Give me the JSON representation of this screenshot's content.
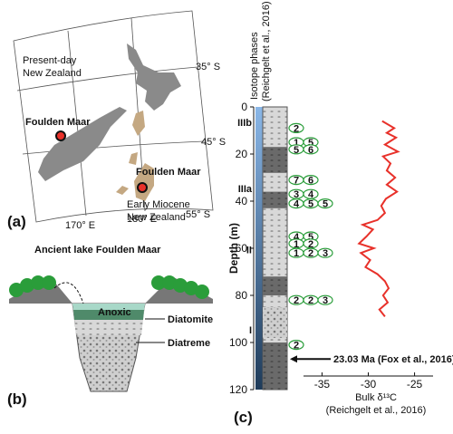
{
  "panel_a": {
    "label": "(a)",
    "lat_labels": [
      "35° S",
      "45° S",
      "55° S"
    ],
    "lon_labels": [
      "170° E",
      "180° E"
    ],
    "present_label": [
      "Present-day",
      "New Zealand"
    ],
    "site_labels": [
      "Foulden Maar",
      "Foulden Maar"
    ],
    "miocene_label": [
      "Early Miocene",
      "New Zealand"
    ]
  },
  "panel_b": {
    "label": "(b)",
    "title": "Ancient lake Foulden Maar",
    "layers": [
      "Anoxic",
      "Diatomite",
      "Diatreme"
    ]
  },
  "panel_c": {
    "label": "(c)",
    "phase_title": [
      "Isotope phases",
      "(Reichgelt et al., 2016)"
    ],
    "phases": [
      {
        "name": "IIIb",
        "depth": 5
      },
      {
        "name": "IIIa",
        "depth": 33
      },
      {
        "name": "II",
        "depth": 59
      },
      {
        "name": "I",
        "depth": 93
      }
    ],
    "leaves": [
      {
        "depth": 9,
        "labels": [
          "2"
        ]
      },
      {
        "depth": 15,
        "labels": [
          "1",
          "5"
        ]
      },
      {
        "depth": 18,
        "labels": [
          "5",
          "6"
        ]
      },
      {
        "depth": 31,
        "labels": [
          "7",
          "6"
        ]
      },
      {
        "depth": 37,
        "labels": [
          "3",
          "4"
        ]
      },
      {
        "depth": 41,
        "labels": [
          "4",
          "5",
          "5"
        ]
      },
      {
        "depth": 55,
        "labels": [
          "4",
          "5"
        ]
      },
      {
        "depth": 58,
        "labels": [
          "1",
          "2"
        ]
      },
      {
        "depth": 62,
        "labels": [
          "1",
          "2",
          "3"
        ]
      },
      {
        "depth": 82,
        "labels": [
          "2",
          "2",
          "3"
        ]
      },
      {
        "depth": 101,
        "labels": [
          "2"
        ]
      }
    ],
    "annotation": {
      "text": "23.03 Ma (Fox et al., 2016)",
      "depth": 107
    },
    "chart_data": {
      "type": "line",
      "ylabel": "Depth (m)",
      "xlabel": [
        "Bulk δ¹³C",
        "(Reichgelt et al., 2016)"
      ],
      "ylim": [
        0,
        120
      ],
      "yticks": [
        0,
        20,
        40,
        60,
        80,
        100,
        120
      ],
      "xlim": [
        -37,
        -23
      ],
      "xticks": [
        -35,
        -30,
        -25
      ],
      "series": [
        {
          "name": "Bulk δ13C",
          "color": "#e8312a",
          "depth": [
            6,
            9,
            11,
            13,
            16,
            19,
            21,
            24,
            27,
            30,
            33,
            36,
            39,
            42,
            45,
            48,
            50,
            52,
            55,
            58,
            60,
            62,
            65,
            68,
            71,
            74,
            77,
            80,
            83,
            86,
            89
          ],
          "values": [
            -28.5,
            -27.2,
            -28,
            -27,
            -28.2,
            -26.8,
            -28.4,
            -27.6,
            -28,
            -27.1,
            -28,
            -26.9,
            -28.1,
            -28.6,
            -28.2,
            -29,
            -30.6,
            -29.5,
            -30.2,
            -31,
            -29.4,
            -30.8,
            -29.8,
            -30.3,
            -29,
            -28.2,
            -27.8,
            -28.4,
            -27.9,
            -28.8,
            -28.2
          ]
        }
      ]
    }
  }
}
